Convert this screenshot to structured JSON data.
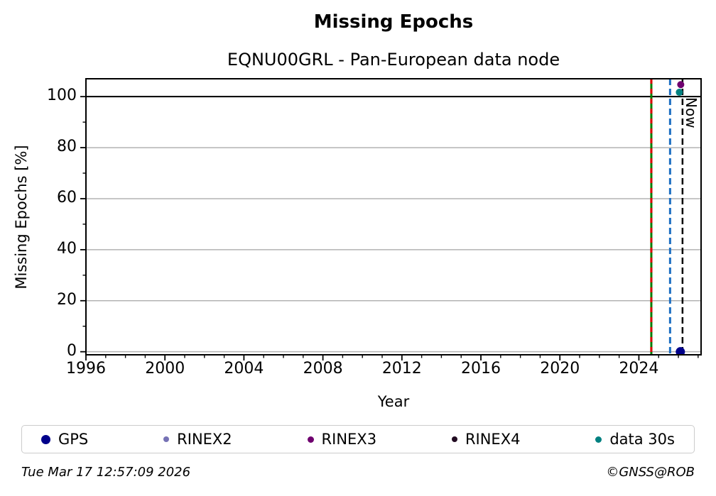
{
  "figure": {
    "timestamp": "Tue Mar 17 12:57:09 2026",
    "copyright": "©GNSS@ROB"
  },
  "chart_data": {
    "type": "scatter",
    "title": "Missing Epochs",
    "subtitle": "EQNU00GRL - Pan-European data node",
    "xlabel": "Year",
    "ylabel": "Missing Epochs [%]",
    "xlim": [
      1996,
      2027.15
    ],
    "ylim": [
      -1.2,
      107.0
    ],
    "xticks": [
      1996,
      2000,
      2004,
      2008,
      2012,
      2016,
      2020,
      2024
    ],
    "yticks": [
      0,
      20,
      40,
      60,
      80,
      100
    ],
    "x_minor_step": 1,
    "y_minor_step": 10,
    "grid": {
      "orientation": "horizontal",
      "at": [
        0,
        20,
        40,
        60,
        80
      ],
      "color": "#b3b3b3"
    },
    "hline": {
      "y": 100,
      "color": "#000000"
    },
    "series": [
      {
        "name": "GPS",
        "color": "#00008b",
        "marker_radius": 6.5,
        "points": [
          [
            2026.1,
            0
          ]
        ]
      },
      {
        "name": "RINEX2",
        "color": "#7672b5",
        "marker_radius": 4,
        "points": []
      },
      {
        "name": "RINEX3",
        "color": "#6f006f",
        "marker_radius": 5,
        "points": [
          [
            2026.12,
            104.7
          ]
        ]
      },
      {
        "name": "RINEX4",
        "color": "#220c22",
        "marker_radius": 4,
        "points": []
      },
      {
        "name": "data 30s",
        "color": "#008080",
        "marker_radius": 5,
        "points": [
          [
            2026.05,
            101.7
          ]
        ]
      }
    ],
    "vlines": [
      {
        "x": 2024.63,
        "color": "#007d00",
        "style": "solid",
        "width": 3,
        "dash": ""
      },
      {
        "x": 2024.63,
        "color": "#dd0000",
        "style": "dashed",
        "width": 3,
        "dash": "7 7"
      },
      {
        "x": 2025.58,
        "color": "#1b6ec2",
        "style": "dashed",
        "width": 3,
        "dash": "9 5"
      },
      {
        "x": 2026.21,
        "color": "#000000",
        "style": "dashed",
        "width": 2.5,
        "dash": "9 5",
        "label": "Now"
      }
    ],
    "legend": {
      "position": "bottom",
      "items": [
        {
          "label": "GPS",
          "color": "#00008b",
          "marker_diameter": 13
        },
        {
          "label": "RINEX2",
          "color": "#7672b5",
          "marker_diameter": 8
        },
        {
          "label": "RINEX3",
          "color": "#6f006f",
          "marker_diameter": 9
        },
        {
          "label": "RINEX4",
          "color": "#220c22",
          "marker_diameter": 8
        },
        {
          "label": "data 30s",
          "color": "#008080",
          "marker_diameter": 9
        }
      ]
    }
  }
}
